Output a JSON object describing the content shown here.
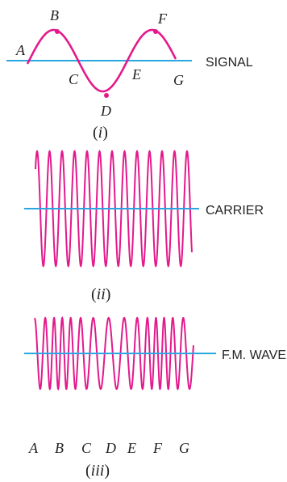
{
  "colors": {
    "wave": "#e3198c",
    "axis": "#2aa7e0",
    "text": "#231f20"
  },
  "panel_i": {
    "label": "SIGNAL",
    "caption_open": "(",
    "caption_roman": "i",
    "caption_close": ")",
    "points": {
      "A": "A",
      "B": "B",
      "C": "C",
      "D": "D",
      "E": "E",
      "F": "F",
      "G": "G"
    }
  },
  "panel_ii": {
    "label": "CARRIER",
    "caption_open": "(",
    "caption_roman": "ii",
    "caption_close": ")"
  },
  "panel_iii": {
    "label": "F.M. WAVE",
    "caption_open": "(",
    "caption_roman": "iii",
    "caption_close": ")",
    "points": [
      "A",
      "B",
      "C",
      "D",
      "E",
      "F",
      "G"
    ]
  }
}
